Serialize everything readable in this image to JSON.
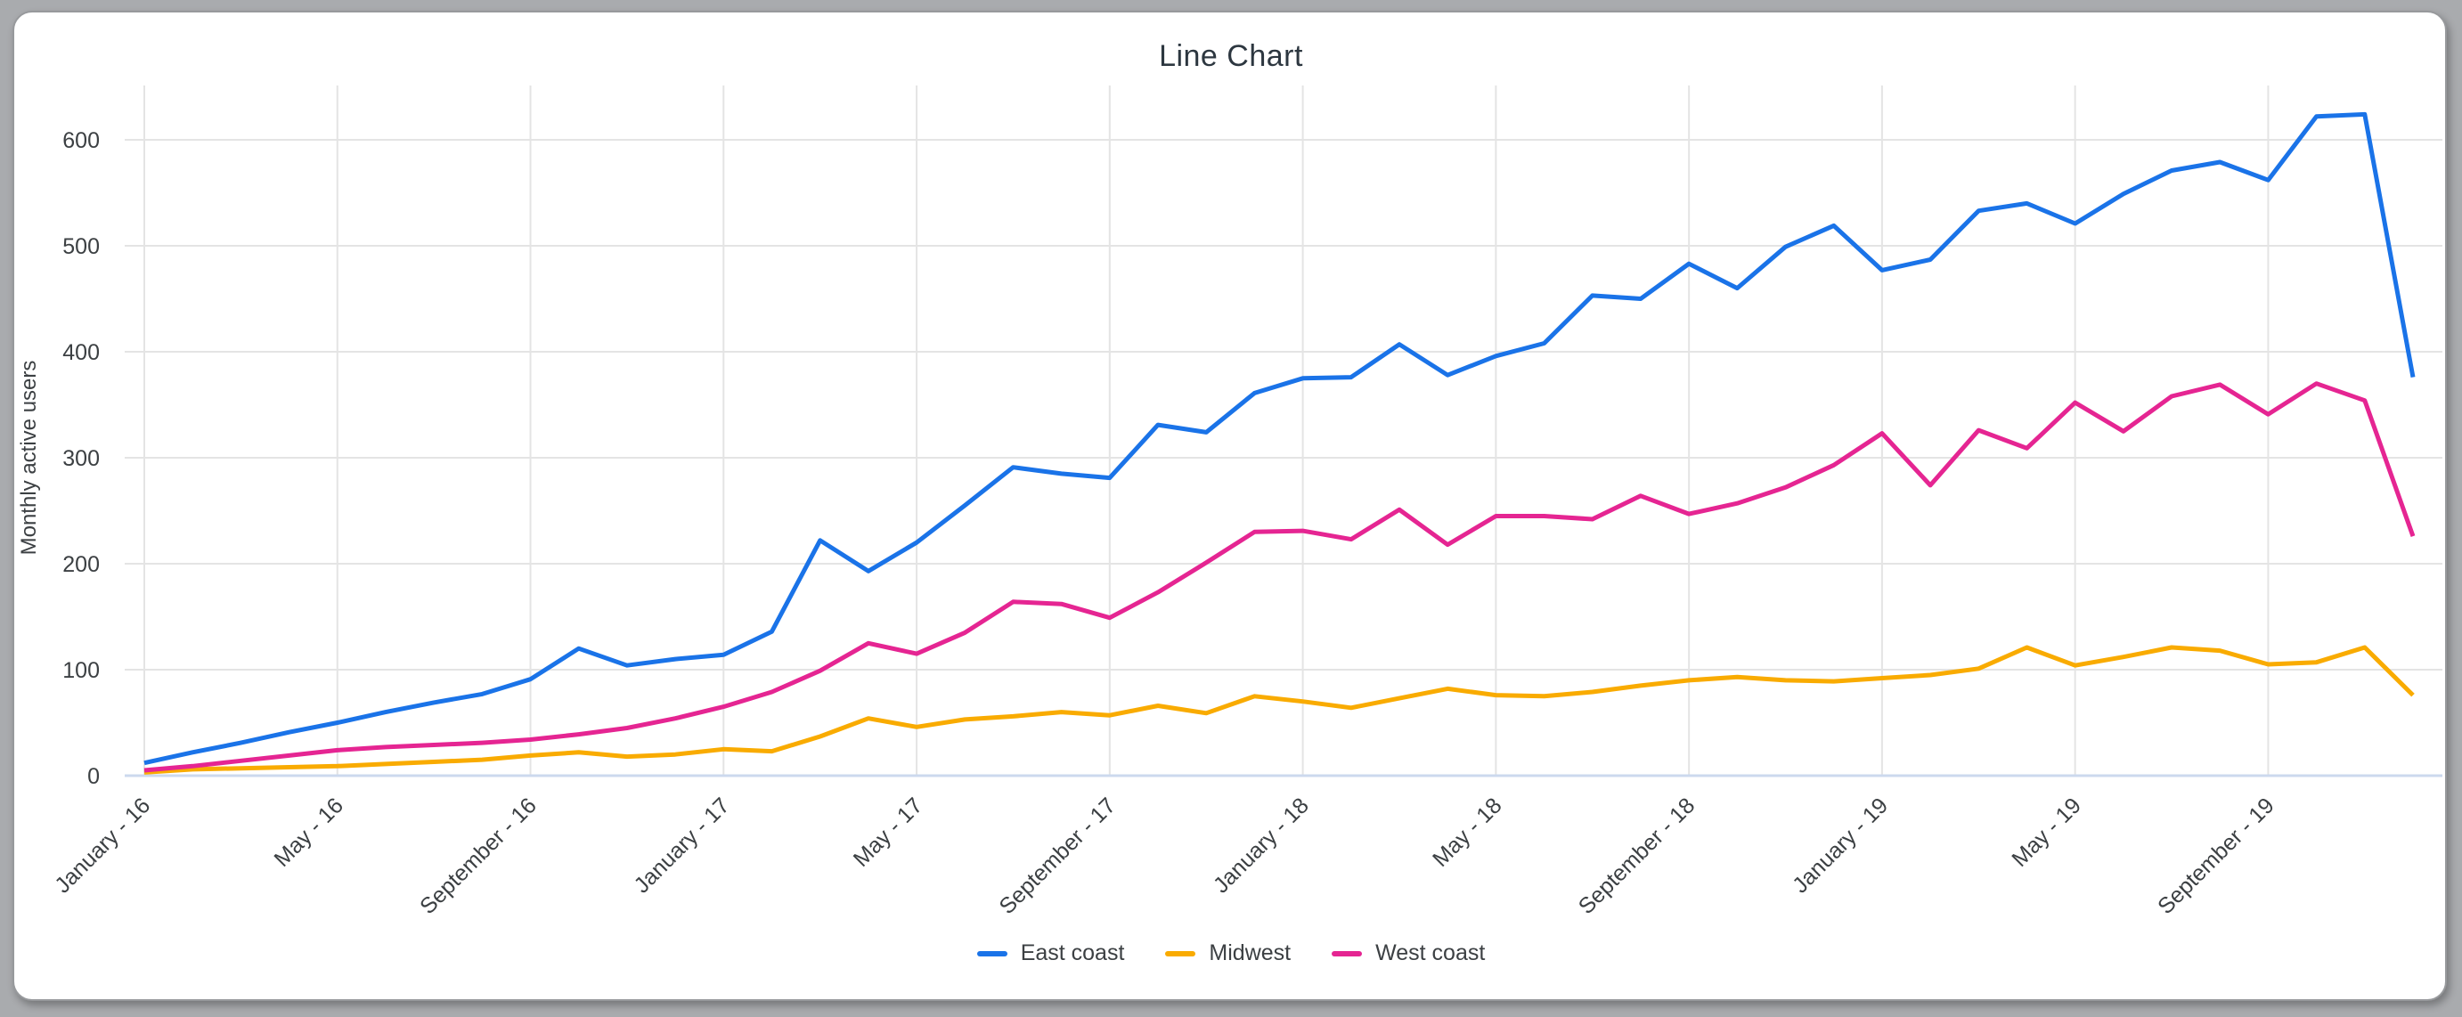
{
  "window": {
    "background_color": "#a9abae",
    "card_background": "#ffffff",
    "grid_color": "#e4e4e4",
    "axis_line_color": "#ccd9ee",
    "tick_text_color": "#3c4043",
    "title_color": "#2d3740"
  },
  "chart_data": {
    "type": "line",
    "title": "Line Chart",
    "xlabel": "",
    "ylabel": "Monthly active users",
    "ylim": [
      0,
      650
    ],
    "yticks": [
      0,
      100,
      200,
      300,
      400,
      500,
      600
    ],
    "grid": true,
    "legend_position": "bottom",
    "months": [
      "2016-01",
      "2016-02",
      "2016-03",
      "2016-04",
      "2016-05",
      "2016-06",
      "2016-07",
      "2016-08",
      "2016-09",
      "2016-10",
      "2016-11",
      "2016-12",
      "2017-01",
      "2017-02",
      "2017-03",
      "2017-04",
      "2017-05",
      "2017-06",
      "2017-07",
      "2017-08",
      "2017-09",
      "2017-10",
      "2017-11",
      "2017-12",
      "2018-01",
      "2018-02",
      "2018-03",
      "2018-04",
      "2018-05",
      "2018-06",
      "2018-07",
      "2018-08",
      "2018-09",
      "2018-10",
      "2018-11",
      "2018-12",
      "2019-01",
      "2019-02",
      "2019-03",
      "2019-04",
      "2019-05",
      "2019-06",
      "2019-07",
      "2019-08",
      "2019-09",
      "2019-10",
      "2019-11",
      "2019-12"
    ],
    "x_ticks": [
      {
        "month_index": 0,
        "label": "January - 16"
      },
      {
        "month_index": 4,
        "label": "May - 16"
      },
      {
        "month_index": 8,
        "label": "September - 16"
      },
      {
        "month_index": 12,
        "label": "January - 17"
      },
      {
        "month_index": 16,
        "label": "May - 17"
      },
      {
        "month_index": 20,
        "label": "September - 17"
      },
      {
        "month_index": 24,
        "label": "January - 18"
      },
      {
        "month_index": 28,
        "label": "May - 18"
      },
      {
        "month_index": 32,
        "label": "September - 18"
      },
      {
        "month_index": 36,
        "label": "January - 19"
      },
      {
        "month_index": 40,
        "label": "May - 19"
      },
      {
        "month_index": 44,
        "label": "September - 19"
      }
    ],
    "series": [
      {
        "name": "East coast",
        "color": "#1a73e8",
        "values": [
          12,
          22,
          31,
          41,
          50,
          60,
          69,
          77,
          91,
          120,
          104,
          110,
          114,
          136,
          222,
          193,
          220,
          255,
          291,
          285,
          281,
          331,
          324,
          361,
          375,
          376,
          407,
          378,
          396,
          408,
          453,
          450,
          483,
          460,
          499,
          519,
          477,
          487,
          533,
          540,
          521,
          549,
          571,
          579,
          562,
          622,
          624,
          376
        ]
      },
      {
        "name": "Midwest",
        "color": "#f9ab00",
        "values": [
          3,
          6,
          7,
          8,
          9,
          11,
          13,
          15,
          19,
          22,
          18,
          20,
          25,
          23,
          37,
          54,
          46,
          53,
          56,
          60,
          57,
          66,
          59,
          75,
          70,
          64,
          73,
          82,
          76,
          75,
          79,
          85,
          90,
          93,
          90,
          89,
          92,
          95,
          101,
          121,
          104,
          112,
          121,
          118,
          105,
          107,
          121,
          76
        ]
      },
      {
        "name": "West coast",
        "color": "#e52592",
        "values": [
          5,
          9,
          14,
          19,
          24,
          27,
          29,
          31,
          34,
          39,
          45,
          54,
          65,
          79,
          99,
          125,
          115,
          135,
          164,
          162,
          149,
          173,
          201,
          230,
          231,
          223,
          251,
          218,
          245,
          245,
          242,
          264,
          247,
          257,
          272,
          293,
          323,
          274,
          326,
          309,
          352,
          325,
          358,
          369,
          341,
          370,
          354,
          226
        ]
      }
    ]
  },
  "legend": {
    "items": [
      {
        "label": "East coast",
        "color": "#1a73e8"
      },
      {
        "label": "Midwest",
        "color": "#f9ab00"
      },
      {
        "label": "West coast",
        "color": "#e52592"
      }
    ]
  }
}
